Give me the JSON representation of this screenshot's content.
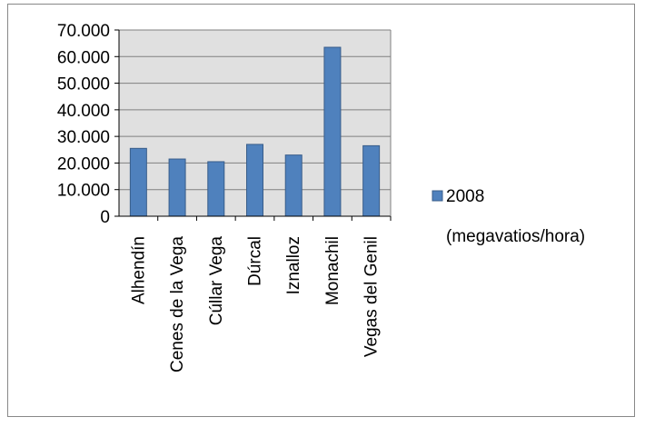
{
  "chart_data": {
    "type": "bar",
    "categories": [
      "Alhendín",
      "Cenes de la Vega",
      "Cúllar Vega",
      "Dúrcal",
      "Iznalloz",
      "Monachil",
      "Vegas del Genil"
    ],
    "series": [
      {
        "name": "2008 (megavatios/hora)",
        "name_lines": [
          "2008",
          "(megavatios/hora)"
        ],
        "values": [
          25500,
          21500,
          20500,
          27000,
          23000,
          63500,
          26500
        ],
        "color": "#4f81bd"
      }
    ],
    "y_ticks": [
      "0",
      "10.000",
      "20.000",
      "30.000",
      "40.000",
      "50.000",
      "60.000",
      "70.000"
    ],
    "ylim": [
      0,
      70000
    ],
    "grid": true,
    "plot_background": "#e0e0e0",
    "legend_position": "right",
    "xlabel": "",
    "ylabel": ""
  }
}
